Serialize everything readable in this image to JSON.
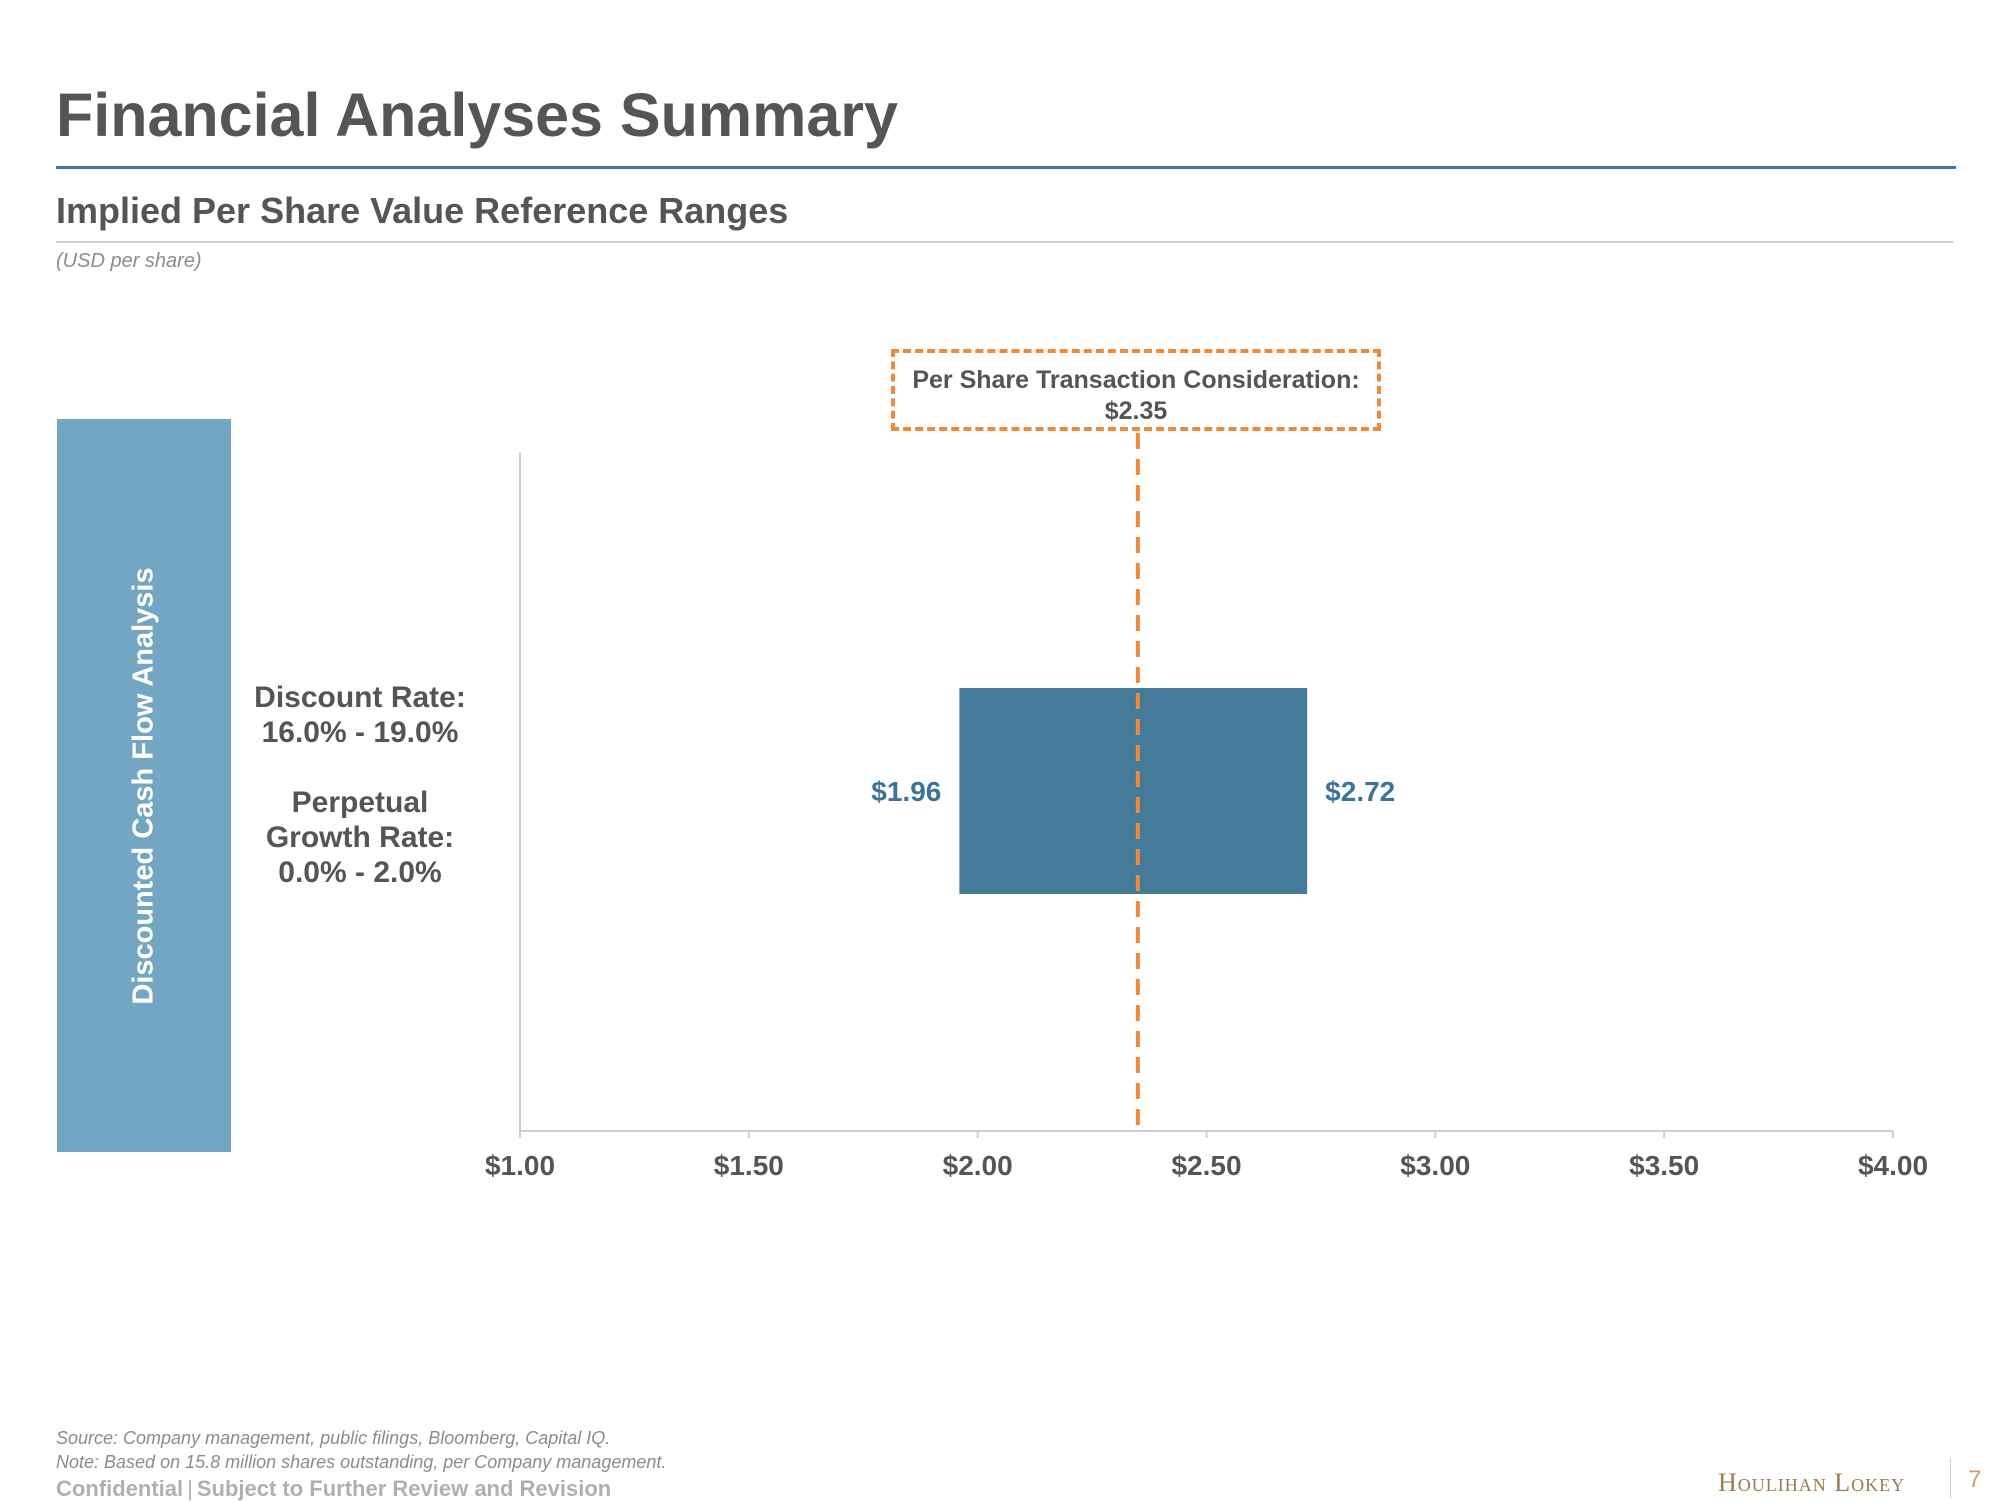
{
  "header": {
    "title": "Financial Analyses Summary",
    "subtitle": "Implied Per Share Value Reference Ranges",
    "units": "(USD per share)"
  },
  "methodology": {
    "label": "Discounted Cash Flow Analysis",
    "discount_rate_label": "Discount Rate:",
    "discount_rate_value": "16.0% - 19.0%",
    "growth_rate_label_1": "Perpetual",
    "growth_rate_label_2": "Growth Rate:",
    "growth_rate_value": "0.0% - 2.0%"
  },
  "transaction": {
    "label": "Per Share Transaction Consideration:",
    "value_label": "$2.35",
    "value": 2.35
  },
  "chart_data": {
    "type": "bar",
    "orientation": "horizontal-range",
    "categories": [
      "Discounted Cash Flow Analysis"
    ],
    "series": [
      {
        "name": "Implied Per Share Value Range",
        "low": 1.96,
        "high": 2.72,
        "low_label": "$1.96",
        "high_label": "$2.72"
      }
    ],
    "reference_line": {
      "value": 2.35,
      "label": "Per Share Transaction Consideration: $2.35"
    },
    "xlim": [
      1.0,
      4.0
    ],
    "xticks": [
      1.0,
      1.5,
      2.0,
      2.5,
      3.0,
      3.5,
      4.0
    ],
    "xtick_labels": [
      "$1.00",
      "$1.50",
      "$2.00",
      "$2.50",
      "$3.00",
      "$3.50",
      "$4.00"
    ],
    "title": "Implied Per Share Value Reference Ranges",
    "xlabel": "",
    "ylabel": "",
    "grid": false
  },
  "footer": {
    "source": "Source: Company management, public filings, Bloomberg, Capital IQ.",
    "note": "Note: Based on 15.8 million shares outstanding, per Company management.",
    "confidential": "Confidential",
    "separator": "|",
    "review": "Subject to Further Review and Revision",
    "logo": "Houlihan Lokey",
    "page": "7"
  },
  "colors": {
    "accent": "#3b78a6",
    "bar": "#447b9a",
    "side_panel": "#73a6c3",
    "reference": "#ee8a3a",
    "value_label": "#3b7399"
  }
}
